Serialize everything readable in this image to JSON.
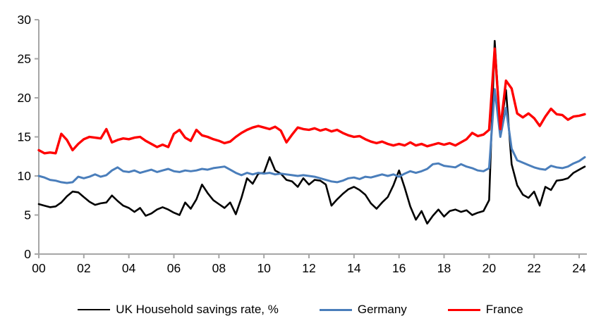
{
  "chart_data": {
    "type": "line",
    "title": "",
    "x_start_year": 2000,
    "x_step_years": 0.25,
    "xlim_years": [
      2000,
      2024.25
    ],
    "ylim": [
      0,
      30
    ],
    "grid": false,
    "legend_position": "bottom",
    "axis_color": "#a6a6a6",
    "x_tick_labels": [
      "00",
      "02",
      "04",
      "06",
      "08",
      "10",
      "12",
      "14",
      "16",
      "18",
      "20",
      "22",
      "24"
    ],
    "y_ticks": [
      0,
      5,
      10,
      15,
      20,
      25,
      30
    ],
    "series": [
      {
        "name": "UK Household savings rate, %",
        "color": "#000000",
        "stroke_width": 2.6,
        "values": [
          6.4,
          6.2,
          6.0,
          6.1,
          6.6,
          7.4,
          8.0,
          7.9,
          7.3,
          6.7,
          6.3,
          6.5,
          6.6,
          7.5,
          6.8,
          6.2,
          5.9,
          5.4,
          5.9,
          4.9,
          5.2,
          5.7,
          6.0,
          5.7,
          5.3,
          5.0,
          6.6,
          5.8,
          7.0,
          8.9,
          7.8,
          6.9,
          6.4,
          5.9,
          6.6,
          5.1,
          7.2,
          9.7,
          9.0,
          10.3,
          10.4,
          12.4,
          10.7,
          10.3,
          9.5,
          9.3,
          8.6,
          9.7,
          8.9,
          9.5,
          9.4,
          8.9,
          6.2,
          7.0,
          7.7,
          8.3,
          8.6,
          8.2,
          7.6,
          6.5,
          5.8,
          6.6,
          7.3,
          8.8,
          10.7,
          8.5,
          6.1,
          4.4,
          5.5,
          3.9,
          4.9,
          5.7,
          4.8,
          5.5,
          5.7,
          5.4,
          5.6,
          5.0,
          5.3,
          5.5,
          6.9,
          27.3,
          15.7,
          21.0,
          11.5,
          8.8,
          7.6,
          7.2,
          8.0,
          6.2,
          8.6,
          8.2,
          9.4,
          9.5,
          9.7,
          10.4,
          10.8,
          11.2
        ]
      },
      {
        "name": "Germany",
        "color": "#4a7ebb",
        "stroke_width": 3.0,
        "values": [
          10.0,
          9.8,
          9.5,
          9.4,
          9.2,
          9.1,
          9.2,
          9.9,
          9.7,
          9.9,
          10.2,
          9.9,
          10.1,
          10.7,
          11.1,
          10.6,
          10.5,
          10.7,
          10.4,
          10.6,
          10.8,
          10.5,
          10.7,
          10.9,
          10.6,
          10.5,
          10.7,
          10.6,
          10.7,
          10.9,
          10.8,
          11.0,
          11.1,
          11.2,
          10.8,
          10.4,
          10.1,
          10.4,
          10.2,
          10.4,
          10.3,
          10.4,
          10.2,
          10.3,
          10.2,
          10.1,
          10.0,
          10.1,
          10.0,
          9.9,
          9.7,
          9.5,
          9.3,
          9.2,
          9.4,
          9.7,
          9.8,
          9.6,
          9.9,
          9.8,
          10.0,
          10.2,
          10.0,
          10.2,
          9.9,
          10.3,
          10.6,
          10.4,
          10.6,
          10.9,
          11.5,
          11.6,
          11.3,
          11.2,
          11.1,
          11.5,
          11.2,
          11.0,
          10.7,
          10.6,
          11.0,
          21.1,
          15.0,
          18.7,
          13.5,
          12.0,
          11.7,
          11.4,
          11.1,
          10.9,
          10.8,
          11.3,
          11.1,
          11.0,
          11.2,
          11.6,
          11.9,
          12.4
        ]
      },
      {
        "name": "France",
        "color": "#ff0000",
        "stroke_width": 3.4,
        "values": [
          13.3,
          12.9,
          13.0,
          12.9,
          15.4,
          14.6,
          13.3,
          14.1,
          14.7,
          15.0,
          14.9,
          14.8,
          16.0,
          14.3,
          14.6,
          14.8,
          14.7,
          14.9,
          15.0,
          14.5,
          14.1,
          13.7,
          14.0,
          13.7,
          15.4,
          15.9,
          14.9,
          14.5,
          15.9,
          15.2,
          15.0,
          14.7,
          14.5,
          14.2,
          14.4,
          15.0,
          15.5,
          15.9,
          16.2,
          16.4,
          16.2,
          16.0,
          16.3,
          15.8,
          14.3,
          15.3,
          16.2,
          16.0,
          15.9,
          16.1,
          15.8,
          16.0,
          15.7,
          15.9,
          15.5,
          15.2,
          15.0,
          15.1,
          14.7,
          14.4,
          14.2,
          14.4,
          14.1,
          13.9,
          14.1,
          13.9,
          14.3,
          13.9,
          14.1,
          13.8,
          14.0,
          14.2,
          14.0,
          14.2,
          13.9,
          14.3,
          14.7,
          15.5,
          15.1,
          15.3,
          15.9,
          26.3,
          16.0,
          22.2,
          21.2,
          18.0,
          17.5,
          18.0,
          17.4,
          16.4,
          17.6,
          18.6,
          17.9,
          17.8,
          17.2,
          17.6,
          17.7,
          17.9
        ]
      }
    ]
  }
}
